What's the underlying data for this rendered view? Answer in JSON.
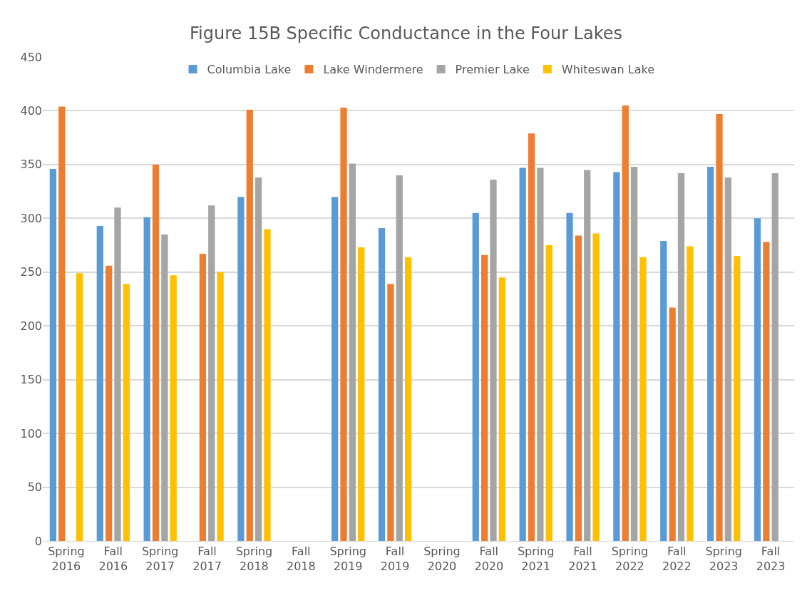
{
  "chart_data": {
    "type": "bar",
    "title": "Figure 15B Specific Conductance in the Four Lakes",
    "categories": [
      "Spring 2016",
      "Fall 2016",
      "Spring 2017",
      "Fall 2017",
      "Spring 2018",
      "Fall 2018",
      "Spring 2019",
      "Fall 2019",
      "Spring 2020",
      "Fall 2020",
      "Spring 2021",
      "Fall 2021",
      "Spring 2022",
      "Fall 2022",
      "Spring 2023",
      "Fall 2023"
    ],
    "series": [
      {
        "name": "Columbia Lake",
        "color": "#5b9bd5",
        "values": [
          346,
          293,
          301,
          null,
          320,
          null,
          320,
          291,
          null,
          305,
          347,
          305,
          343,
          279,
          348,
          300
        ]
      },
      {
        "name": "Lake Windermere",
        "color": "#ed7d31",
        "values": [
          404,
          256,
          350,
          267,
          401,
          null,
          403,
          239,
          null,
          266,
          379,
          284,
          405,
          217,
          397,
          278
        ]
      },
      {
        "name": "Premier Lake",
        "color": "#a5a5a5",
        "values": [
          null,
          310,
          285,
          312,
          338,
          null,
          351,
          340,
          null,
          336,
          347,
          345,
          348,
          342,
          338,
          342
        ]
      },
      {
        "name": "Whiteswan Lake",
        "color": "#ffc000",
        "values": [
          249,
          239,
          247,
          250,
          290,
          null,
          273,
          264,
          null,
          245,
          275,
          286,
          264,
          274,
          265,
          null
        ]
      }
    ],
    "ylim": [
      0,
      450
    ],
    "yticks": [
      0,
      50,
      100,
      150,
      200,
      250,
      300,
      350,
      400,
      450
    ],
    "grid": "y",
    "legend": "top"
  }
}
